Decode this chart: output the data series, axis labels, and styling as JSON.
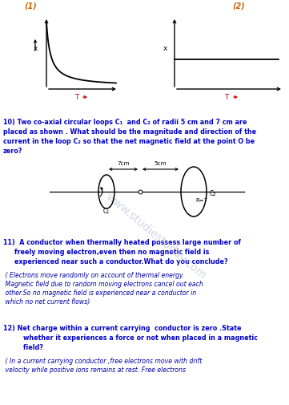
{
  "bg_color": "#ffffff",
  "label1": "(1)",
  "label2": "(2)",
  "label_color": "#cc6600",
  "graph_axis_color": "#000000",
  "graph_label_color": "#000000",
  "T_label_color": "#cc0000",
  "q_color": "#0000cc",
  "ans_color": "#0000aa",
  "diag_color": "#000000",
  "q10_text": "10) Two co-axial circular loops C₁  and C₂ of radii 5 cm and 7 cm are\nplaced as shown . What should be the magnitude and direction of the\ncurrent in the loop C₂ so that the net magnetic field at the point O be\nzero?",
  "q11_line1": "11)  A conductor when thermally heated possess large number of",
  "q11_line2": "freely moving electron,even then no magnetic field is",
  "q11_line3": "experienced near such a conductor.What do you conclude?",
  "q11_ans1": " ( Electrons move randomly on account of thermal energy.",
  "q11_ans2": " Magnetic field due to random moving electrons cancel out each",
  "q11_ans3": " other.So no magnetic field is experienced near a conductor in",
  "q11_ans4": " which no net current flows)",
  "q12_line1": "12) Net charge within a current carrying  conductor is zero .State",
  "q12_line2": "    whether it experiences a force or not when placed in a magnetic",
  "q12_line3": "    field?",
  "q12_ans1": " ( In a current carrying conductor ,free electrons move with drift",
  "q12_ans2": " velocity while positive ions remains at rest. Free electrons",
  "watermark": "www.studiestoday.com"
}
